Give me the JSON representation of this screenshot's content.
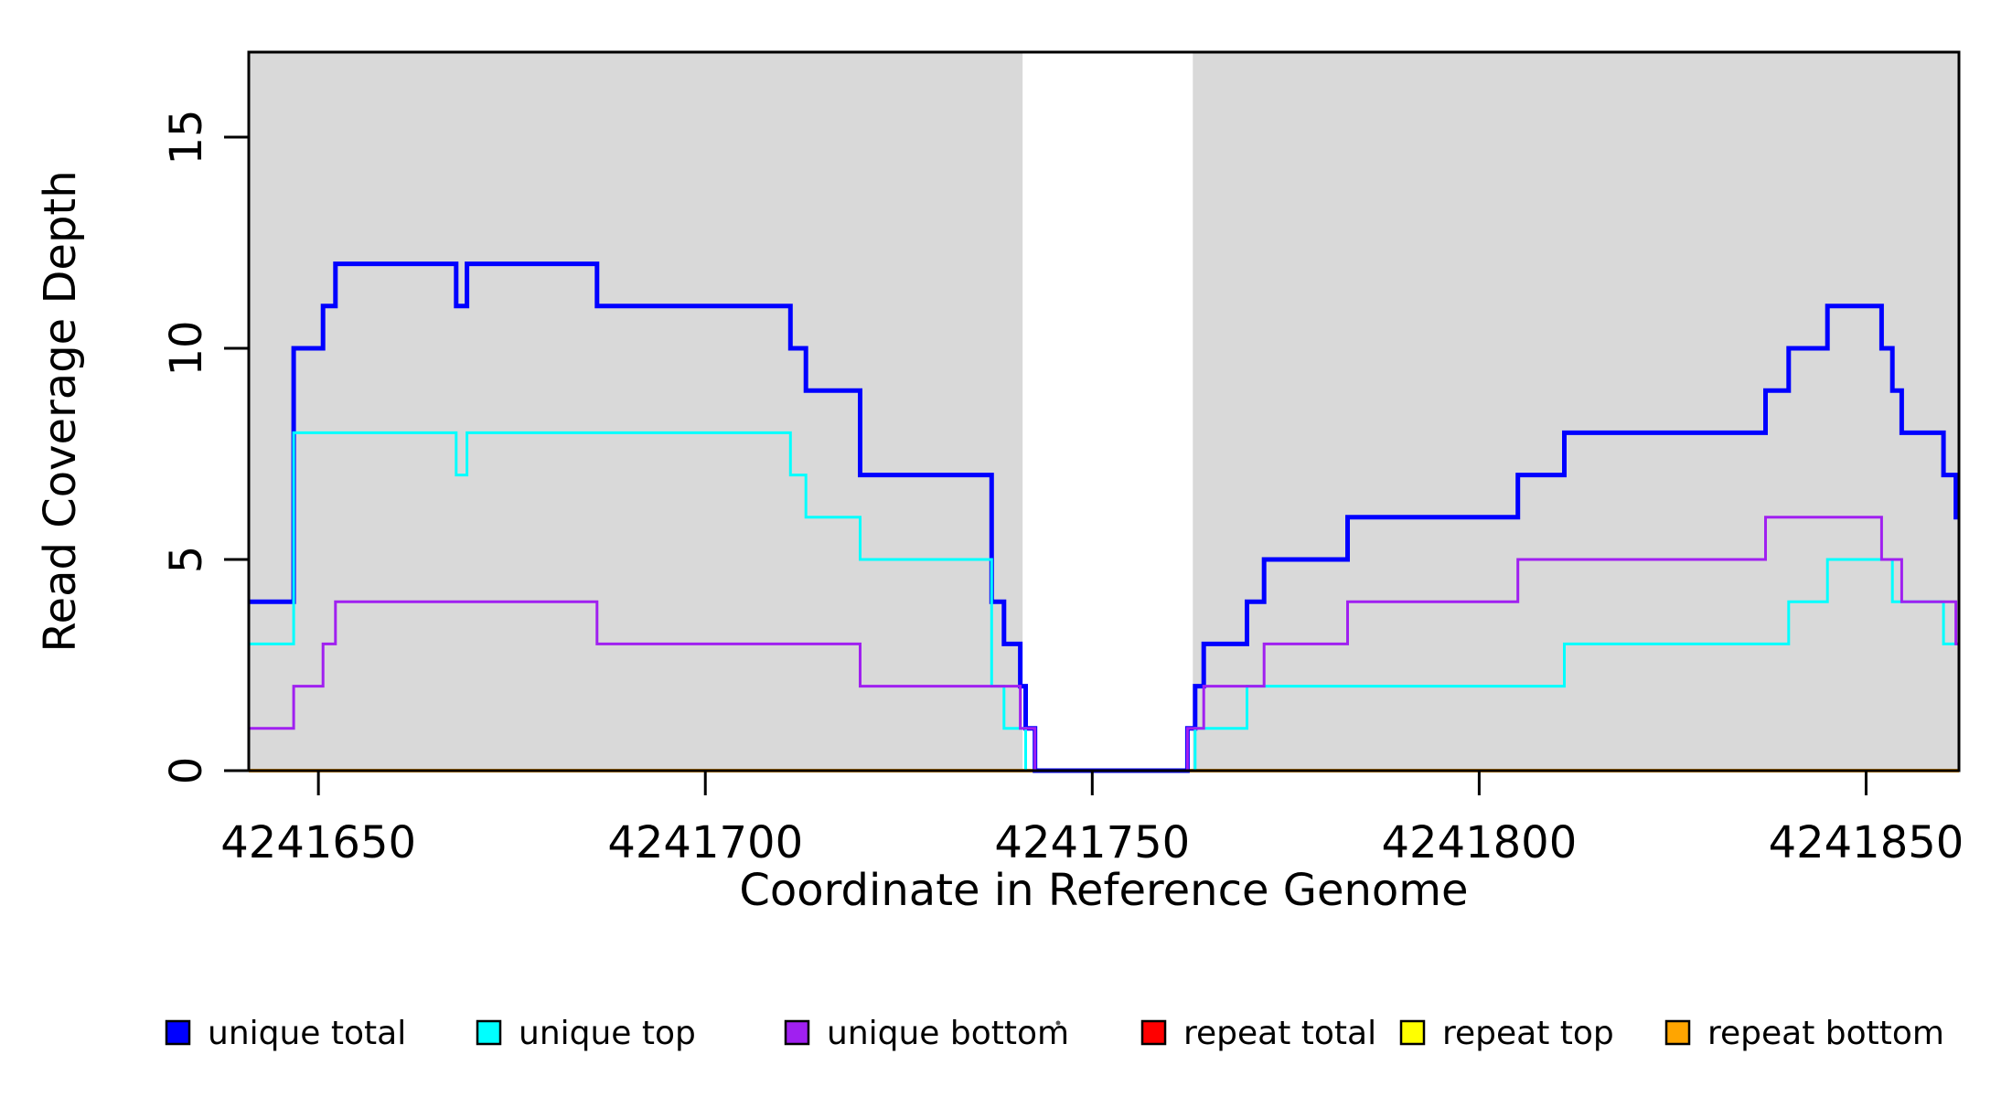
{
  "page": {
    "background": "#ffffff"
  },
  "axes": {
    "x_label": "Coordinate in Reference Genome",
    "y_label": "Read Coverage Depth",
    "x_tick_labels": [
      "4241650",
      "4241700",
      "4241750",
      "4241800",
      "4241850"
    ],
    "y_tick_labels": [
      "0",
      "5",
      "10",
      "15"
    ]
  },
  "legend": {
    "entries": [
      {
        "label": "unique total",
        "color": "#0000FF"
      },
      {
        "label": "unique top",
        "color": "#00FFFF"
      },
      {
        "label": "unique bottom",
        "color": "#A020F0"
      },
      {
        "label": "repeat total",
        "color": "#FF0000"
      },
      {
        "label": "repeat top",
        "color": "#FFFF00"
      },
      {
        "label": "repeat bottom",
        "color": "#FFA500"
      }
    ]
  },
  "chart_data": {
    "type": "line",
    "subtype": "step",
    "title": "",
    "xlabel": "Coordinate in Reference Genome",
    "ylabel": "Read Coverage Depth",
    "xlim": [
      4241641,
      4241862
    ],
    "ylim": [
      0,
      17
    ],
    "x_ticks": [
      4241650,
      4241700,
      4241750,
      4241800,
      4241850
    ],
    "y_ticks": [
      0,
      5,
      10,
      15
    ],
    "grid": false,
    "legend_position": "bottom",
    "shade_color": "#d9d9d9",
    "background_shaded_regions": [
      [
        4241641,
        4241741
      ],
      [
        4241763,
        4241862
      ]
    ],
    "series": [
      {
        "name": "repeat total",
        "color": "#FF0000",
        "width": 3,
        "steps": [
          [
            4241641,
            0
          ]
        ]
      },
      {
        "name": "repeat top",
        "color": "#FFFF00",
        "width": 3,
        "steps": [
          [
            4241641,
            0
          ]
        ]
      },
      {
        "name": "repeat bottom",
        "color": "#FFA500",
        "width": 4,
        "steps": [
          [
            4241641,
            0
          ]
        ]
      },
      {
        "name": "unique total",
        "color": "#0000FF",
        "width": 5,
        "steps": [
          [
            4241641,
            4
          ],
          [
            4241646.8,
            10
          ],
          [
            4241650.6,
            11
          ],
          [
            4241652.2,
            12
          ],
          [
            4241667.8,
            11
          ],
          [
            4241669.2,
            12
          ],
          [
            4241686,
            11
          ],
          [
            4241711,
            10
          ],
          [
            4241713,
            9
          ],
          [
            4241720,
            7
          ],
          [
            4241737,
            4
          ],
          [
            4241738.6,
            3
          ],
          [
            4241740.7,
            2
          ],
          [
            4241741.4,
            1
          ],
          [
            4241742.6,
            0
          ],
          [
            4241762.3,
            1
          ],
          [
            4241763.3,
            2
          ],
          [
            4241764.4,
            3
          ],
          [
            4241770,
            4
          ],
          [
            4241772.2,
            5
          ],
          [
            4241783,
            6
          ],
          [
            4241805,
            7
          ],
          [
            4241811,
            8
          ],
          [
            4241837,
            9
          ],
          [
            4241840,
            10
          ],
          [
            4241845,
            11
          ],
          [
            4241852,
            10
          ],
          [
            4241853.4,
            9
          ],
          [
            4241854.6,
            8
          ],
          [
            4241860,
            7
          ],
          [
            4241861.6,
            6
          ]
        ]
      },
      {
        "name": "unique top",
        "color": "#00FFFF",
        "width": 3,
        "steps": [
          [
            4241641,
            3
          ],
          [
            4241646.8,
            8
          ],
          [
            4241667.8,
            7
          ],
          [
            4241669.2,
            8
          ],
          [
            4241711,
            7
          ],
          [
            4241713,
            6
          ],
          [
            4241720,
            5
          ],
          [
            4241737,
            2
          ],
          [
            4241738.6,
            1
          ],
          [
            4241741.4,
            0
          ],
          [
            4241763.3,
            1
          ],
          [
            4241770,
            2
          ],
          [
            4241811,
            3
          ],
          [
            4241840,
            4
          ],
          [
            4241845,
            5
          ],
          [
            4241853.4,
            4
          ],
          [
            4241860,
            3
          ]
        ]
      },
      {
        "name": "unique bottom",
        "color": "#A020F0",
        "width": 3,
        "steps": [
          [
            4241641,
            1
          ],
          [
            4241646.8,
            2
          ],
          [
            4241650.6,
            3
          ],
          [
            4241652.2,
            4
          ],
          [
            4241686,
            3
          ],
          [
            4241720,
            2
          ],
          [
            4241740.7,
            1
          ],
          [
            4241742.6,
            0
          ],
          [
            4241762.3,
            1
          ],
          [
            4241764.4,
            2
          ],
          [
            4241772.2,
            3
          ],
          [
            4241783,
            4
          ],
          [
            4241805,
            5
          ],
          [
            4241837,
            6
          ],
          [
            4241852,
            5
          ],
          [
            4241854.6,
            4
          ],
          [
            4241861.6,
            3
          ]
        ]
      }
    ]
  }
}
